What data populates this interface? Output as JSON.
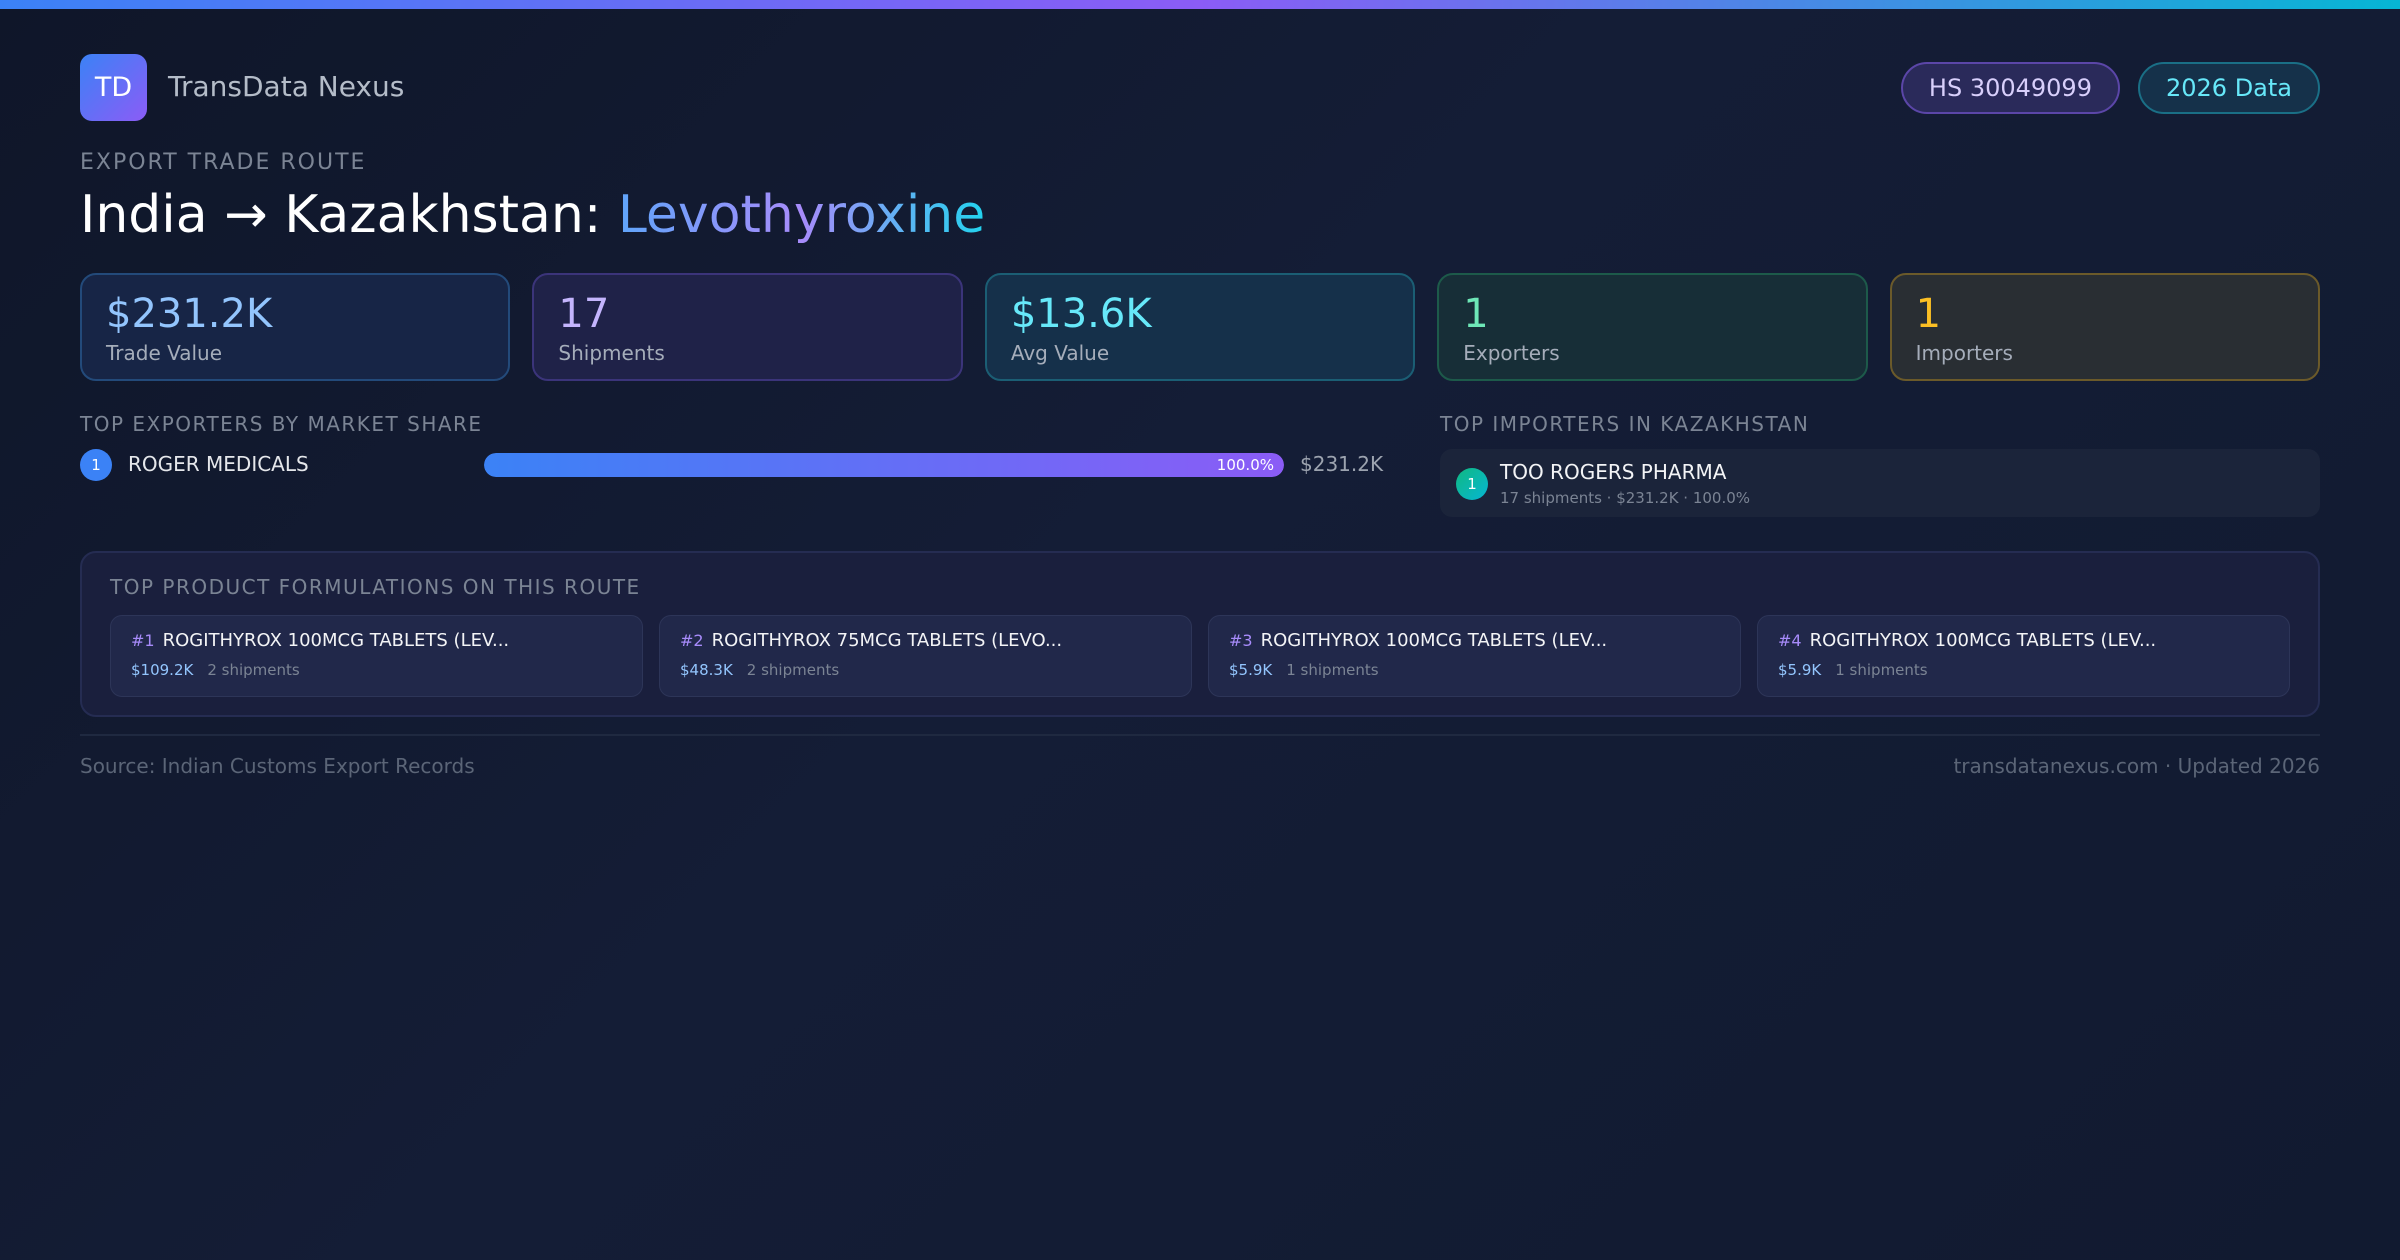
{
  "brand": {
    "logo": "TD",
    "name": "TransData Nexus"
  },
  "badges": {
    "hs": "HS 30049099",
    "year": "2026 Data"
  },
  "route": {
    "kicker": "EXPORT TRADE ROUTE",
    "title_prefix": "India → Kazakhstan: ",
    "product": "Levothyroxine"
  },
  "stats": [
    {
      "value": "$231.2K",
      "label": "Trade Value"
    },
    {
      "value": "17",
      "label": "Shipments"
    },
    {
      "value": "$13.6K",
      "label": "Avg Value"
    },
    {
      "value": "1",
      "label": "Exporters"
    },
    {
      "value": "1",
      "label": "Importers"
    }
  ],
  "exporters": {
    "title": "TOP EXPORTERS BY MARKET SHARE",
    "items": [
      {
        "rank": "1",
        "name": "ROGER MEDICALS",
        "share_pct": 100.0,
        "share_label": "100.0%",
        "value": "$231.2K"
      }
    ]
  },
  "importers": {
    "title": "TOP IMPORTERS IN KAZAKHSTAN",
    "items": [
      {
        "rank": "1",
        "name": "TOO ROGERS PHARMA",
        "detail": "17 shipments · $231.2K · 100.0%"
      }
    ]
  },
  "products": {
    "title": "TOP PRODUCT FORMULATIONS ON THIS ROUTE",
    "items": [
      {
        "rank": "#1",
        "name": "ROGITHYROX 100MCG TABLETS (LEV...",
        "value": "$109.2K",
        "shipments": "2 shipments"
      },
      {
        "rank": "#2",
        "name": "ROGITHYROX 75MCG TABLETS (LEVO...",
        "value": "$48.3K",
        "shipments": "2 shipments"
      },
      {
        "rank": "#3",
        "name": "ROGITHYROX 100MCG TABLETS (LEV...",
        "value": "$5.9K",
        "shipments": "1 shipments"
      },
      {
        "rank": "#4",
        "name": "ROGITHYROX 100MCG TABLETS (LEV...",
        "value": "$5.9K",
        "shipments": "1 shipments"
      }
    ]
  },
  "footer": {
    "source": "Source: Indian Customs Export Records",
    "site": "transdatanexus.com · Updated 2026"
  },
  "colors": {
    "accent_blue": "#3b82f6",
    "accent_purple": "#8b5cf6",
    "accent_cyan": "#06b6d4",
    "exporter_rank": "#3b82f6",
    "importer_rank": "#14b8a6"
  }
}
